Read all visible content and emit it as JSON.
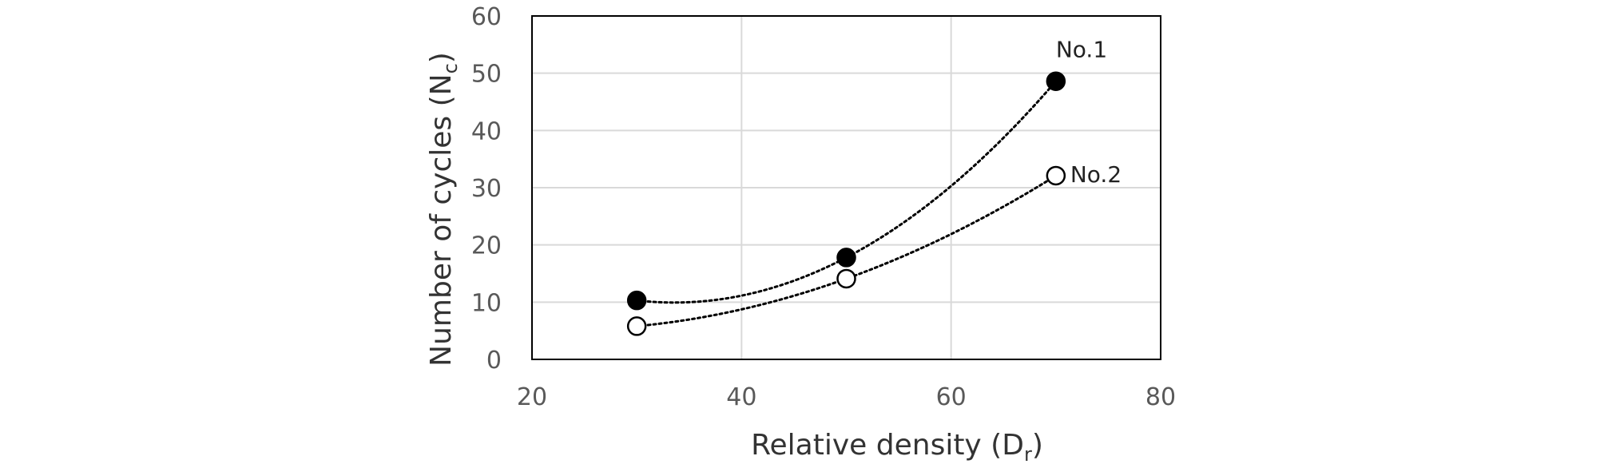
{
  "chart_data": {
    "type": "scatter",
    "title": "",
    "xlabel": "Relative density (D",
    "xlabel_sub": "r",
    "xlabel_close": ")",
    "ylabel": "Number of cycles (N",
    "ylabel_sub": "c",
    "ylabel_close": ")",
    "xlim": [
      20,
      80
    ],
    "ylim": [
      0,
      60
    ],
    "x_ticks": [
      20,
      40,
      60,
      80
    ],
    "y_ticks": [
      0,
      10,
      20,
      30,
      40,
      50,
      60
    ],
    "grid": true,
    "trendline": "polynomial (dotted)",
    "series": [
      {
        "name": "No.1",
        "marker": "filled-circle",
        "color": "#000000",
        "points": [
          [
            30,
            10.3
          ],
          [
            50,
            17.8
          ],
          [
            70,
            48.6
          ]
        ]
      },
      {
        "name": "No.2",
        "marker": "open-circle",
        "color": "#000000",
        "points": [
          [
            30,
            5.8
          ],
          [
            50,
            14.1
          ],
          [
            70,
            32.1
          ]
        ]
      }
    ]
  }
}
